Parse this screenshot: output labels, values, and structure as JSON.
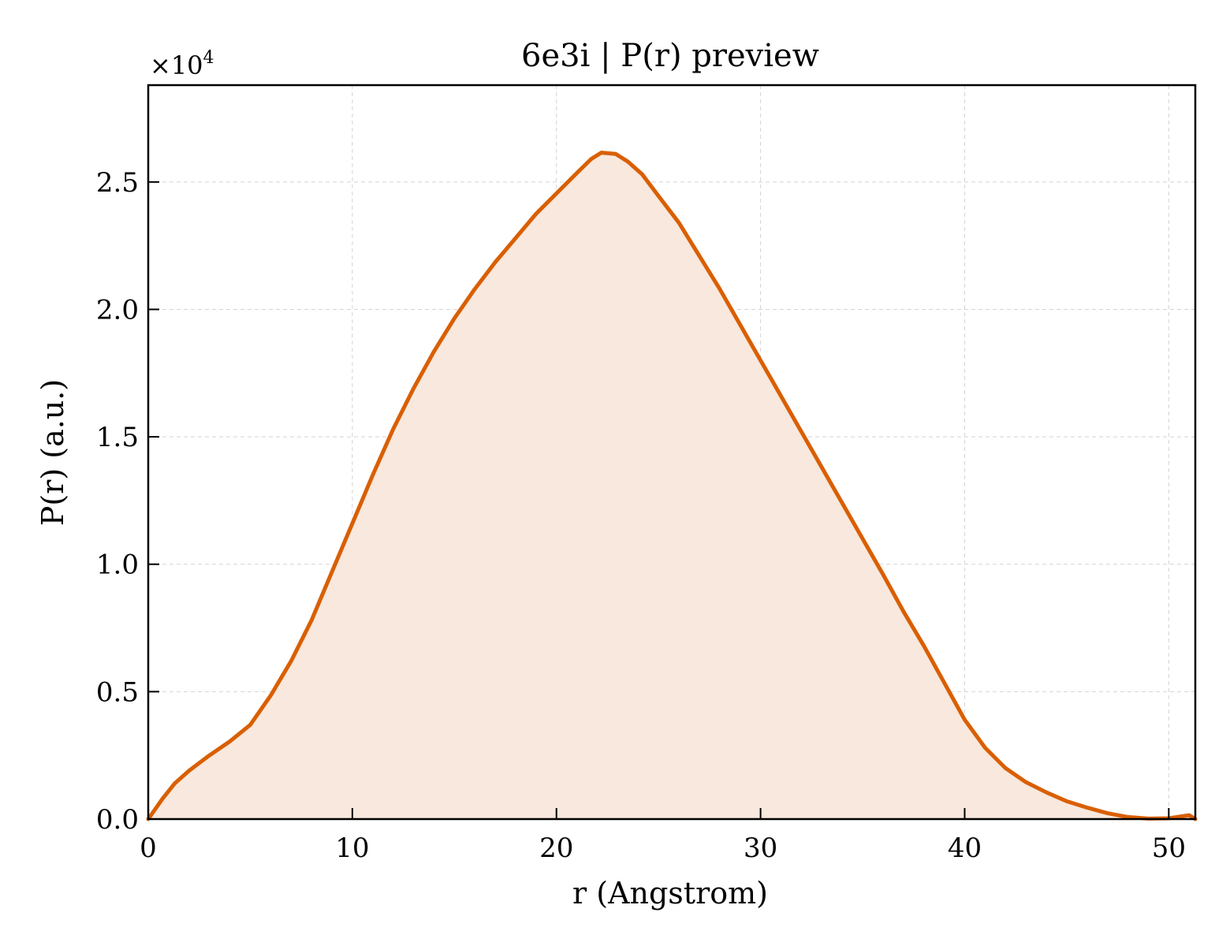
{
  "chart_data": {
    "type": "area",
    "title": "6e3i | P(r) preview",
    "xlabel": "r (Angstrom)",
    "ylabel": "P(r) (a.u.)",
    "y_scale_label": "×10",
    "y_scale_exponent": "4",
    "xlim": [
      0,
      51.3
    ],
    "ylim": [
      0,
      28800
    ],
    "x_ticks": [
      0,
      10,
      20,
      30,
      40,
      50
    ],
    "x_tick_labels": [
      "0",
      "10",
      "20",
      "30",
      "40",
      "50"
    ],
    "y_ticks": [
      0,
      5000,
      10000,
      15000,
      20000,
      25000
    ],
    "y_tick_labels": [
      "0.0",
      "0.5",
      "1.0",
      "1.5",
      "2.0",
      "2.5"
    ],
    "grid": true,
    "line_color": "#D95F02",
    "fill_color": "#F8E8DD",
    "series": [
      {
        "x": [
          0,
          0.7,
          1.3,
          2,
          3,
          4,
          5,
          6,
          7,
          8,
          9,
          10,
          11,
          12,
          13,
          14,
          15,
          16,
          17,
          18,
          19,
          20,
          21,
          21.7,
          22.2,
          22.9,
          23.5,
          24.2,
          25,
          26,
          27,
          28,
          29,
          30,
          31,
          32,
          33,
          34,
          35,
          36,
          37,
          38,
          39,
          40,
          41,
          42,
          43,
          44,
          45,
          46,
          47,
          48,
          49,
          50,
          51,
          51.3
        ],
        "y": [
          0,
          800,
          1400,
          1900,
          2500,
          3050,
          3700,
          4850,
          6200,
          7800,
          9700,
          11600,
          13500,
          15300,
          16900,
          18350,
          19650,
          20800,
          21850,
          22800,
          23750,
          24550,
          25350,
          25900,
          26150,
          26100,
          25800,
          25300,
          24450,
          23400,
          22100,
          20800,
          19400,
          18000,
          16600,
          15200,
          13800,
          12400,
          11000,
          9600,
          8150,
          6800,
          5350,
          3900,
          2800,
          2000,
          1450,
          1050,
          700,
          450,
          230,
          80,
          20,
          30,
          150,
          0
        ]
      }
    ]
  }
}
